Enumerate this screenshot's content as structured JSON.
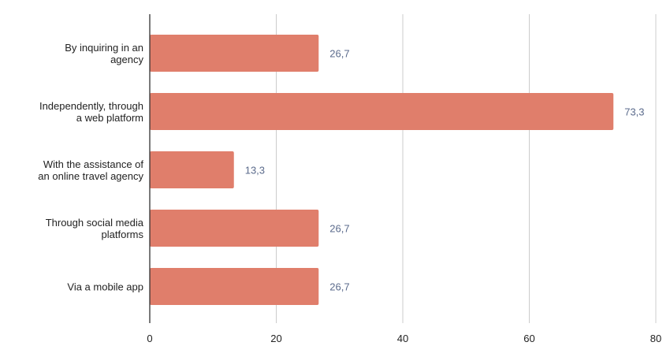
{
  "chart_data": {
    "type": "bar",
    "orientation": "horizontal",
    "categories": [
      [
        "By inquiring in an",
        "agency"
      ],
      [
        "Independently, through",
        "a web platform"
      ],
      [
        "With the assistance of",
        "an online travel agency"
      ],
      [
        "Through social media",
        "platforms"
      ],
      [
        "Via a mobile app"
      ]
    ],
    "values": [
      26.7,
      73.3,
      13.3,
      26.7,
      26.7
    ],
    "value_labels": [
      "26,7",
      "73,3",
      "13,3",
      "26,7",
      "26,7"
    ],
    "xlim": [
      0,
      80
    ],
    "xticks": [
      0,
      20,
      40,
      60,
      80
    ],
    "xtick_labels": [
      "0",
      "20",
      "40",
      "60",
      "80"
    ],
    "title": "",
    "xlabel": "",
    "ylabel": "",
    "grid": "vertical",
    "legend": "none",
    "colors": {
      "bar": "#e07e6b",
      "grid": "#cccccc",
      "axis": "#333333",
      "data_label": "#5b6b8c"
    }
  }
}
